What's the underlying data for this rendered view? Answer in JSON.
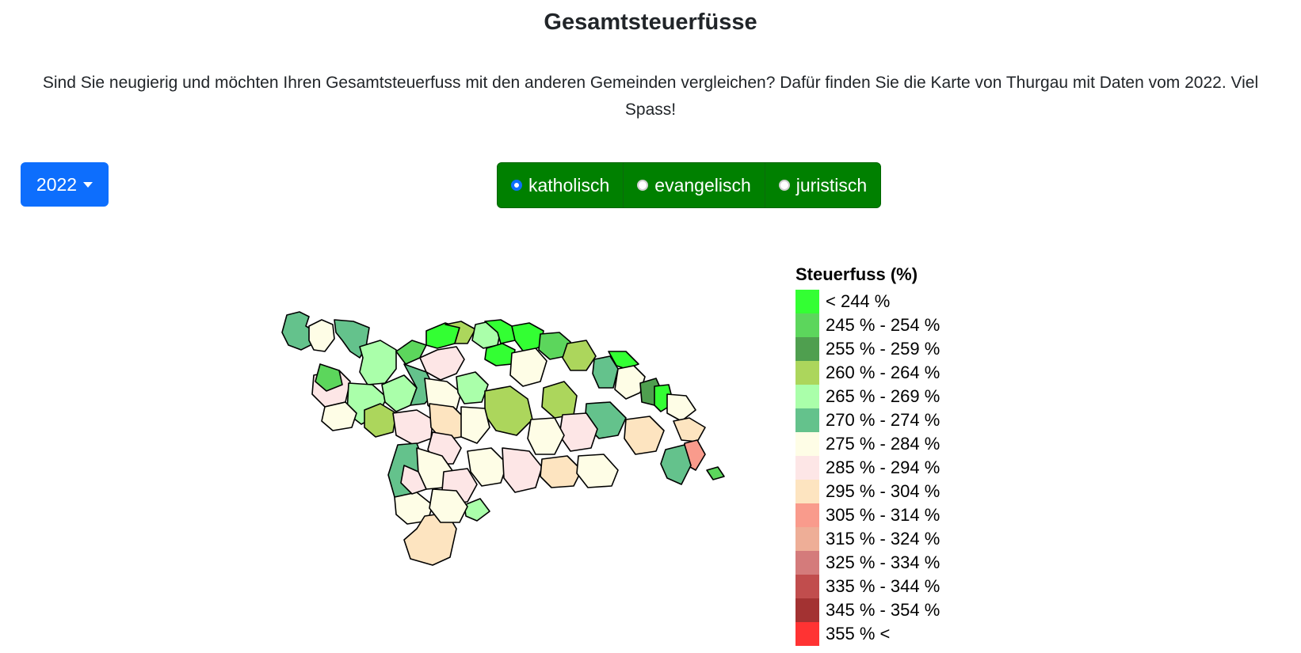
{
  "page": {
    "title": "Gesamtsteuerfüsse",
    "intro": "Sind Sie neugierig und möchten Ihren Gesamtsteuerfuss mit den anderen Gemeinden vergleichen? Dafür finden Sie die Karte von Thurgau mit Daten vom 2022. Viel Spass!"
  },
  "controls": {
    "year_dropdown": {
      "selected": "2022"
    },
    "denomination_options": [
      {
        "label": "katholisch",
        "checked": true
      },
      {
        "label": "evangelisch",
        "checked": false
      },
      {
        "label": "juristisch",
        "checked": false
      }
    ],
    "colors": {
      "year_button": "#0d6efd",
      "radio_group": "#008000"
    }
  },
  "legend": {
    "title": "Steuerfuss (%)",
    "items": [
      {
        "label": "< 244 %",
        "color": "#33ff33"
      },
      {
        "label": "245 % - 254 %",
        "color": "#5cd65c"
      },
      {
        "label": "255 % - 259 %",
        "color": "#4f9f4f"
      },
      {
        "label": "260 % - 264 %",
        "color": "#acd65c"
      },
      {
        "label": "265 % - 269 %",
        "color": "#aaffaa"
      },
      {
        "label": "270 % - 274 %",
        "color": "#64c28c"
      },
      {
        "label": "275 % - 284 %",
        "color": "#fefde6"
      },
      {
        "label": "285 % - 294 %",
        "color": "#fde6e6"
      },
      {
        "label": "295 % - 304 %",
        "color": "#fde4c0"
      },
      {
        "label": "305 % - 314 %",
        "color": "#f99b8c"
      },
      {
        "label": "315 % - 324 %",
        "color": "#eeae97"
      },
      {
        "label": "325 % - 334 %",
        "color": "#d47b7b"
      },
      {
        "label": "335 % - 344 %",
        "color": "#c14d4d"
      },
      {
        "label": "345 % - 354 %",
        "color": "#a33232"
      },
      {
        "label": "355 % <",
        "color": "#ff3333"
      }
    ]
  },
  "map": {
    "name": "Thurgau",
    "regions": [
      {
        "class": 5,
        "color": "#64c28c"
      },
      {
        "class": 6,
        "color": "#fefde6"
      },
      {
        "class": 5,
        "color": "#64c28c"
      },
      {
        "class": 4,
        "color": "#aaffaa"
      },
      {
        "class": 1,
        "color": "#5cd65c"
      },
      {
        "class": 0,
        "color": "#33ff33"
      },
      {
        "class": 3,
        "color": "#acd65c"
      },
      {
        "class": 4,
        "color": "#aaffaa"
      },
      {
        "class": 7,
        "color": "#fde6e6"
      },
      {
        "class": 0,
        "color": "#33ff33"
      },
      {
        "class": 0,
        "color": "#33ff33"
      },
      {
        "class": 1,
        "color": "#5cd65c"
      },
      {
        "class": 3,
        "color": "#acd65c"
      },
      {
        "class": 5,
        "color": "#64c28c"
      },
      {
        "class": 0,
        "color": "#33ff33"
      },
      {
        "class": 6,
        "color": "#fefde6"
      },
      {
        "class": 2,
        "color": "#4f9f4f"
      },
      {
        "class": 0,
        "color": "#33ff33"
      },
      {
        "class": 6,
        "color": "#fefde6"
      },
      {
        "class": 8,
        "color": "#fde4c0"
      },
      {
        "class": 7,
        "color": "#fde6e6"
      },
      {
        "class": 4,
        "color": "#aaffaa"
      },
      {
        "class": 3,
        "color": "#acd65c"
      },
      {
        "class": 6,
        "color": "#fefde6"
      },
      {
        "class": 4,
        "color": "#aaffaa"
      },
      {
        "class": 5,
        "color": "#64c28c"
      },
      {
        "class": 6,
        "color": "#fefde6"
      },
      {
        "class": 1,
        "color": "#5cd65c"
      },
      {
        "class": 4,
        "color": "#aaffaa"
      },
      {
        "class": 0,
        "color": "#33ff33"
      },
      {
        "class": 6,
        "color": "#fefde6"
      },
      {
        "class": 3,
        "color": "#acd65c"
      },
      {
        "class": 7,
        "color": "#fde6e6"
      },
      {
        "class": 8,
        "color": "#fde4c0"
      },
      {
        "class": 6,
        "color": "#fefde6"
      },
      {
        "class": 7,
        "color": "#fde6e6"
      },
      {
        "class": 3,
        "color": "#acd65c"
      },
      {
        "class": 5,
        "color": "#64c28c"
      },
      {
        "class": 7,
        "color": "#fde6e6"
      },
      {
        "class": 6,
        "color": "#fefde6"
      },
      {
        "class": 8,
        "color": "#fde4c0"
      },
      {
        "class": 9,
        "color": "#f99b8c"
      },
      {
        "class": 5,
        "color": "#64c28c"
      },
      {
        "class": 1,
        "color": "#5cd65c"
      },
      {
        "class": 5,
        "color": "#64c28c"
      },
      {
        "class": 6,
        "color": "#fefde6"
      },
      {
        "class": 7,
        "color": "#fde6e6"
      },
      {
        "class": 6,
        "color": "#fefde6"
      },
      {
        "class": 7,
        "color": "#fde6e6"
      },
      {
        "class": 8,
        "color": "#fde4c0"
      },
      {
        "class": 6,
        "color": "#fefde6"
      },
      {
        "class": 4,
        "color": "#aaffaa"
      },
      {
        "class": 6,
        "color": "#fefde6"
      },
      {
        "class": 8,
        "color": "#fde4c0"
      },
      {
        "class": 6,
        "color": "#fefde6"
      },
      {
        "class": 7,
        "color": "#fde6e6"
      }
    ]
  }
}
